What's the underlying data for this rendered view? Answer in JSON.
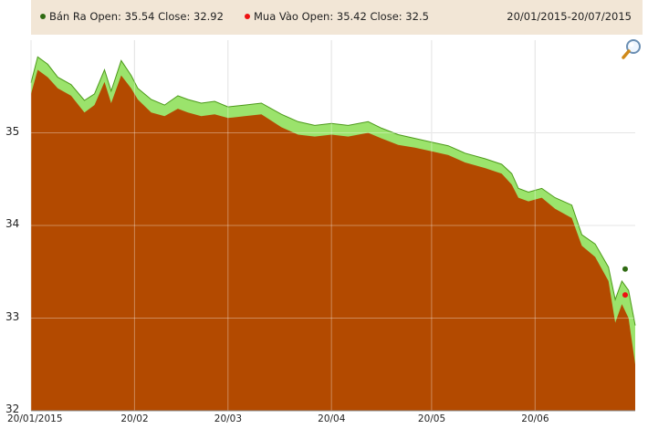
{
  "legend": {
    "series1_label": "Bán Ra Open: 35.54 Close: 32.92",
    "series2_label": "Mua Vào Open: 35.42 Close: 32.5",
    "date_range": "20/01/2015-20/07/2015"
  },
  "colors": {
    "ban_ra_fill": "#9be36c",
    "ban_ra_line": "#4c9a1a",
    "mua_vao_fill": "#b34a00",
    "ban_ra_dot": "#2f6a12",
    "mua_vao_dot": "#ee1111",
    "legend_bg": "#f2e6d6",
    "plot_bg": "#ffffff",
    "grid": "#d7d7d7"
  },
  "chart_data": {
    "type": "area",
    "x_start": "20/01/2015",
    "x_end": "20/07/2015",
    "x_tick_labels": [
      "20/01/2015",
      "20/02",
      "20/03",
      "20/04",
      "20/05",
      "20/06"
    ],
    "x_tick_dates": [
      "2015-01-20",
      "2015-02-20",
      "2015-03-20",
      "2015-04-20",
      "2015-05-20",
      "2015-06-20"
    ],
    "y_tick_labels": [
      "35",
      "34",
      "33",
      "32"
    ],
    "y_tick_values": [
      35,
      34,
      33,
      32
    ],
    "ylim": [
      32,
      36
    ],
    "grid": true,
    "legend_position": "top",
    "series": [
      {
        "name": "Bán Ra",
        "open": 35.54,
        "close": 32.92,
        "points": [
          [
            "2015-01-20",
            35.54
          ],
          [
            "2015-01-22",
            35.82
          ],
          [
            "2015-01-25",
            35.74
          ],
          [
            "2015-01-28",
            35.6
          ],
          [
            "2015-02-01",
            35.52
          ],
          [
            "2015-02-05",
            35.35
          ],
          [
            "2015-02-08",
            35.42
          ],
          [
            "2015-02-11",
            35.68
          ],
          [
            "2015-02-13",
            35.45
          ],
          [
            "2015-02-16",
            35.78
          ],
          [
            "2015-02-19",
            35.62
          ],
          [
            "2015-02-21",
            35.48
          ],
          [
            "2015-02-25",
            35.36
          ],
          [
            "2015-03-01",
            35.3
          ],
          [
            "2015-03-05",
            35.4
          ],
          [
            "2015-03-08",
            35.36
          ],
          [
            "2015-03-12",
            35.32
          ],
          [
            "2015-03-16",
            35.34
          ],
          [
            "2015-03-20",
            35.28
          ],
          [
            "2015-03-25",
            35.3
          ],
          [
            "2015-03-30",
            35.32
          ],
          [
            "2015-04-05",
            35.2
          ],
          [
            "2015-04-10",
            35.12
          ],
          [
            "2015-04-15",
            35.08
          ],
          [
            "2015-04-20",
            35.1
          ],
          [
            "2015-04-25",
            35.08
          ],
          [
            "2015-05-01",
            35.12
          ],
          [
            "2015-05-05",
            35.05
          ],
          [
            "2015-05-10",
            34.98
          ],
          [
            "2015-05-15",
            34.94
          ],
          [
            "2015-05-20",
            34.9
          ],
          [
            "2015-05-25",
            34.86
          ],
          [
            "2015-05-30",
            34.78
          ],
          [
            "2015-06-05",
            34.72
          ],
          [
            "2015-06-10",
            34.66
          ],
          [
            "2015-06-13",
            34.56
          ],
          [
            "2015-06-15",
            34.4
          ],
          [
            "2015-06-18",
            34.36
          ],
          [
            "2015-06-22",
            34.4
          ],
          [
            "2015-06-26",
            34.3
          ],
          [
            "2015-07-01",
            34.22
          ],
          [
            "2015-07-04",
            33.9
          ],
          [
            "2015-07-08",
            33.8
          ],
          [
            "2015-07-12",
            33.55
          ],
          [
            "2015-07-14",
            33.2
          ],
          [
            "2015-07-16",
            33.4
          ],
          [
            "2015-07-18",
            33.3
          ],
          [
            "2015-07-20",
            32.92
          ]
        ]
      },
      {
        "name": "Mua Vào",
        "open": 35.42,
        "close": 32.5,
        "points": [
          [
            "2015-01-20",
            35.42
          ],
          [
            "2015-01-22",
            35.68
          ],
          [
            "2015-01-25",
            35.6
          ],
          [
            "2015-01-28",
            35.48
          ],
          [
            "2015-02-01",
            35.4
          ],
          [
            "2015-02-05",
            35.22
          ],
          [
            "2015-02-08",
            35.3
          ],
          [
            "2015-02-11",
            35.55
          ],
          [
            "2015-02-13",
            35.32
          ],
          [
            "2015-02-16",
            35.62
          ],
          [
            "2015-02-19",
            35.48
          ],
          [
            "2015-02-21",
            35.36
          ],
          [
            "2015-02-25",
            35.22
          ],
          [
            "2015-03-01",
            35.18
          ],
          [
            "2015-03-05",
            35.26
          ],
          [
            "2015-03-08",
            35.22
          ],
          [
            "2015-03-12",
            35.18
          ],
          [
            "2015-03-16",
            35.2
          ],
          [
            "2015-03-20",
            35.16
          ],
          [
            "2015-03-25",
            35.18
          ],
          [
            "2015-03-30",
            35.2
          ],
          [
            "2015-04-05",
            35.06
          ],
          [
            "2015-04-10",
            34.98
          ],
          [
            "2015-04-15",
            34.96
          ],
          [
            "2015-04-20",
            34.98
          ],
          [
            "2015-04-25",
            34.96
          ],
          [
            "2015-05-01",
            35.0
          ],
          [
            "2015-05-05",
            34.94
          ],
          [
            "2015-05-10",
            34.87
          ],
          [
            "2015-05-15",
            34.84
          ],
          [
            "2015-05-20",
            34.8
          ],
          [
            "2015-05-25",
            34.76
          ],
          [
            "2015-05-30",
            34.68
          ],
          [
            "2015-06-05",
            34.62
          ],
          [
            "2015-06-10",
            34.56
          ],
          [
            "2015-06-13",
            34.44
          ],
          [
            "2015-06-15",
            34.3
          ],
          [
            "2015-06-18",
            34.26
          ],
          [
            "2015-06-22",
            34.3
          ],
          [
            "2015-06-26",
            34.18
          ],
          [
            "2015-07-01",
            34.08
          ],
          [
            "2015-07-04",
            33.78
          ],
          [
            "2015-07-08",
            33.66
          ],
          [
            "2015-07-12",
            33.4
          ],
          [
            "2015-07-14",
            32.95
          ],
          [
            "2015-07-16",
            33.15
          ],
          [
            "2015-07-18",
            33.0
          ],
          [
            "2015-07-20",
            32.5
          ]
        ]
      }
    ]
  }
}
